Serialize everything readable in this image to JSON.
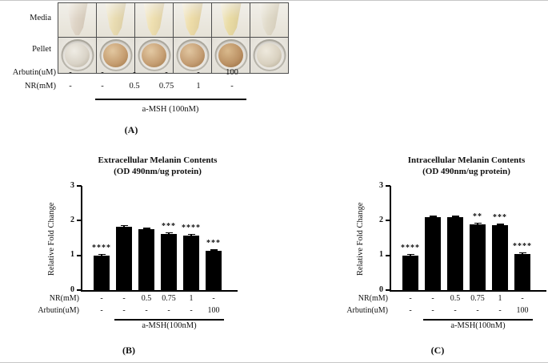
{
  "panel_a": {
    "label": "(A)",
    "row_labels": [
      "Media",
      "Pellet"
    ],
    "media_cells": [
      "#ded4c6",
      "#e9dcb2",
      "#eedfb0",
      "#eddca8",
      "#e9dba4",
      "#e0dac9"
    ],
    "pellet_cells": [
      {
        "hi": "#efece4",
        "base": "#d9d3c7",
        "lo": "#b3ab9a"
      },
      {
        "hi": "#e2c7a0",
        "base": "#c59d70",
        "lo": "#9e7546"
      },
      {
        "hi": "#e3c9a3",
        "base": "#c59e73",
        "lo": "#9e7748"
      },
      {
        "hi": "#e1c6a0",
        "base": "#c39c72",
        "lo": "#9c7446"
      },
      {
        "hi": "#d9b98c",
        "base": "#bb9164",
        "lo": "#93683c"
      },
      {
        "hi": "#eee9dd",
        "base": "#d9d1c0",
        "lo": "#b3a992"
      }
    ],
    "treatments": [
      {
        "label": "Arbutin(uM)",
        "values": [
          "-",
          "-",
          "-",
          "-",
          "-",
          "100"
        ]
      },
      {
        "label": "NR(mM)",
        "values": [
          "-",
          "-",
          "0.5",
          "0.75",
          "1",
          "-"
        ]
      }
    ],
    "msh_label": "a-MSH (100nM)"
  },
  "chart_data": [
    {
      "type": "bar",
      "panel_label": "(B)",
      "title": "Extracellular Melanin Contents",
      "subtitle": "(OD 490nm/ug protein)",
      "ylabel": "Relative Fold Change",
      "ylim": [
        0,
        3
      ],
      "yticks": [
        0,
        1,
        2,
        3
      ],
      "values": [
        1.0,
        1.83,
        1.75,
        1.62,
        1.58,
        1.12
      ],
      "errors": [
        0.02,
        0.04,
        0.02,
        0.03,
        0.04,
        0.05
      ],
      "significance": [
        "****",
        "",
        "",
        "***",
        "****",
        "***"
      ],
      "rows": [
        {
          "label": "NR(mM)",
          "values": [
            "-",
            "-",
            "0.5",
            "0.75",
            "1",
            "-"
          ]
        },
        {
          "label": "Arbutin(uM)",
          "values": [
            "-",
            "-",
            "-",
            "-",
            "-",
            "100"
          ]
        }
      ],
      "group_label": "a-MSH(100nM)",
      "bar_color": "#000000",
      "grid": "off",
      "legend": "none"
    },
    {
      "type": "bar",
      "panel_label": "(C)",
      "title": "Intracellular Melanin Contents",
      "subtitle": "(OD 490nm/ug protein)",
      "ylabel": "Relative Fold Change",
      "ylim": [
        0,
        3
      ],
      "yticks": [
        0,
        1,
        2,
        3
      ],
      "values": [
        1.0,
        2.1,
        2.1,
        1.9,
        1.86,
        1.05
      ],
      "errors": [
        0.02,
        0.03,
        0.03,
        0.05,
        0.05,
        0.04
      ],
      "significance": [
        "****",
        "",
        "",
        "**",
        "***",
        "****"
      ],
      "rows": [
        {
          "label": "NR(mM)",
          "values": [
            "-",
            "-",
            "0.5",
            "0.75",
            "1",
            "-"
          ]
        },
        {
          "label": "Arbutin(uM)",
          "values": [
            "-",
            "-",
            "-",
            "-",
            "-",
            "100"
          ]
        }
      ],
      "group_label": "a-MSH(100nM)",
      "bar_color": "#000000",
      "grid": "off",
      "legend": "none"
    }
  ]
}
